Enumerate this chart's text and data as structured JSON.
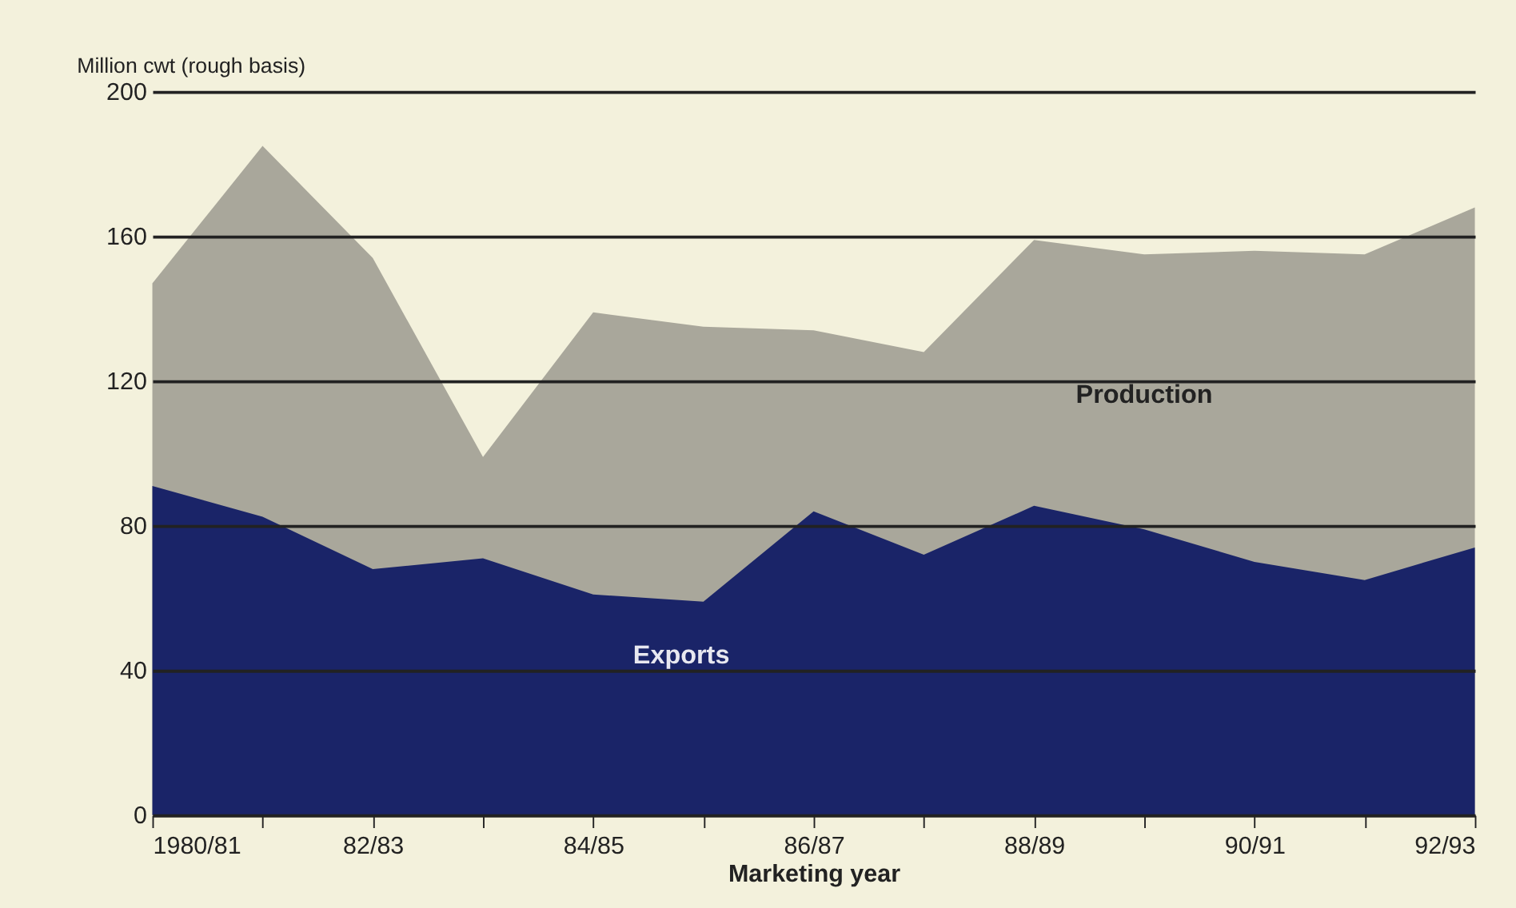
{
  "chart_data": {
    "type": "area",
    "ylabel": "Million cwt (rough basis)",
    "xlabel": "Marketing year",
    "categories": [
      "1980/81",
      null,
      "82/83",
      null,
      "84/85",
      null,
      "86/87",
      null,
      "88/89",
      null,
      "90/91",
      null,
      "92/93"
    ],
    "series": [
      {
        "name": "Production",
        "color": "#a9a79b",
        "values": [
          147,
          185,
          154,
          99,
          139,
          135,
          134,
          128,
          159,
          155,
          156,
          155,
          168
        ]
      },
      {
        "name": "Exports",
        "color": "#1a2468",
        "values": [
          91,
          82.5,
          68,
          71,
          61,
          59,
          84,
          72,
          85.5,
          79,
          70,
          65,
          74
        ]
      }
    ],
    "ylim": [
      0,
      200
    ],
    "yticks": [
      0,
      40,
      80,
      120,
      160,
      200
    ],
    "grid": "y",
    "legend": false
  }
}
